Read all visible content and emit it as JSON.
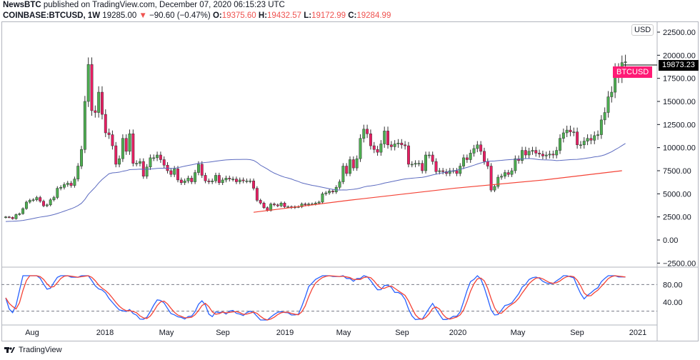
{
  "header": {
    "author": "NewsBTC",
    "published_text": "published on TradingView.com, December 07, 2020 06:15:23 UTC",
    "symbol": "COINBASE:BTCUSD, 1W",
    "last": "19285.00",
    "change": "−90.60 (−0.47%)",
    "o_label": "O:",
    "o": "19375.60",
    "h_label": "H:",
    "h": "19432.57",
    "l_label": "L:",
    "l": "19172.99",
    "c_label": "C:",
    "c": "19284.99"
  },
  "price_axis": {
    "currency": "USD",
    "last_price_label": "19873.23",
    "symbol_tag": "BTCUSD",
    "ticks": [
      "22500.00",
      "20000.00",
      "17500.00",
      "15000.00",
      "12500.00",
      "10000.00",
      "7500.00",
      "5000.00",
      "2500.00",
      "0.00",
      "−2500.00"
    ],
    "osc_ticks": [
      "80.00",
      "40.00"
    ]
  },
  "time_axis": [
    "Aug",
    "2018",
    "May",
    "Sep",
    "2019",
    "May",
    "Sep",
    "2020",
    "May",
    "Sep",
    "2021"
  ],
  "brand": "TradingView",
  "colors": {
    "up": "#26a69a",
    "up_fill": "#4caf50",
    "down": "#e91e63",
    "ma_blue": "#5c6bc0",
    "ma_red": "#f44336",
    "stoch_k": "#2962ff",
    "stoch_d": "#f44336"
  },
  "chart_data": {
    "type": "candlestick",
    "interval": "1W",
    "start": "2017-07-03",
    "closes": [
      2500,
      2450,
      2300,
      2750,
      2850,
      3400,
      4100,
      4300,
      4350,
      4600,
      4200,
      3700,
      3800,
      4350,
      4600,
      5600,
      5700,
      6000,
      6150,
      5900,
      6600,
      8000,
      9800,
      15000,
      19000,
      14000,
      13800,
      16000,
      13600,
      11600,
      11400,
      10200,
      8200,
      8800,
      11000,
      9600,
      11500,
      8300,
      8300,
      8500,
      6900,
      7900,
      8900,
      8900,
      9200,
      8700,
      8100,
      7500,
      7100,
      7700,
      6500,
      6200,
      6400,
      6700,
      6300,
      7300,
      8200,
      7000,
      6400,
      6300,
      6400,
      7000,
      6200,
      6500,
      6700,
      6600,
      6600,
      6300,
      6500,
      6400,
      6400,
      6400,
      5600,
      4300,
      4000,
      3500,
      3200,
      3900,
      3800,
      3700,
      4000,
      3600,
      3600,
      3500,
      3600,
      3600,
      3900,
      3800,
      3900,
      3900,
      4000,
      4100,
      5000,
      5100,
      5300,
      5200,
      5700,
      6300,
      8000,
      7200,
      8700,
      7800,
      8800,
      11000,
      12000,
      11500,
      10200,
      9800,
      9500,
      10400,
      11800,
      10300,
      10100,
      10400,
      10500,
      10300,
      10200,
      8200,
      8200,
      8300,
      8300,
      7500,
      9200,
      9200,
      8500,
      7400,
      7500,
      7400,
      7200,
      7500,
      7500,
      7200,
      8000,
      8900,
      8700,
      9400,
      9900,
      10300,
      9600,
      8500,
      8000,
      5400,
      5800,
      6800,
      6900,
      7300,
      7100,
      7500,
      8800,
      8600,
      9700,
      9200,
      9600,
      9700,
      9400,
      9300,
      9100,
      9200,
      9300,
      9200,
      9700,
      11000,
      11600,
      11900,
      11700,
      11700,
      10300,
      10300,
      10700,
      11000,
      10800,
      11300,
      11400,
      13000,
      13800,
      15500,
      16000,
      18400,
      17700,
      19200,
      19285
    ],
    "ma_red_points": [
      {
        "date": "2018-11-19",
        "value": 3000
      },
      {
        "date": "2019-06-01",
        "value": 4300
      },
      {
        "date": "2020-01-01",
        "value": 5600
      },
      {
        "date": "2020-07-01",
        "value": 6500
      },
      {
        "date": "2020-12-07",
        "value": 7500
      }
    ],
    "ylim": [
      -2500,
      22500
    ],
    "osc_levels": [
      80,
      20
    ]
  }
}
